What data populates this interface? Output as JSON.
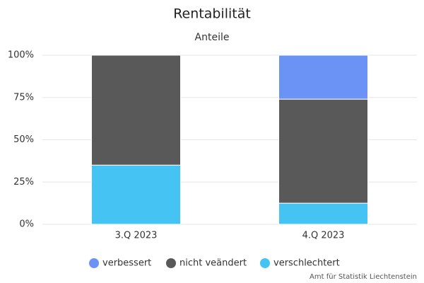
{
  "chart_data": {
    "type": "stacked_bar",
    "title": "Rentabilität",
    "subtitle": "Anteile",
    "categories": [
      "3.Q 2023",
      "4.Q 2023"
    ],
    "series": [
      {
        "name": "verbessert",
        "color": "#6b93f5",
        "values": [
          0,
          26
        ]
      },
      {
        "name": "nicht veändert",
        "color": "#595959",
        "values": [
          65,
          61.5
        ]
      },
      {
        "name": "verschlechtert",
        "color": "#45c3f2",
        "values": [
          35,
          12.5
        ]
      }
    ],
    "ylim": [
      0,
      100
    ],
    "yticks": [
      {
        "value": 0,
        "label": "0%"
      },
      {
        "value": 25,
        "label": "25%"
      },
      {
        "value": 50,
        "label": "50%"
      },
      {
        "value": 75,
        "label": "75%"
      },
      {
        "value": 100,
        "label": "100%"
      }
    ],
    "grid": true,
    "credits": "Amt für Statistik Liechtenstein"
  }
}
